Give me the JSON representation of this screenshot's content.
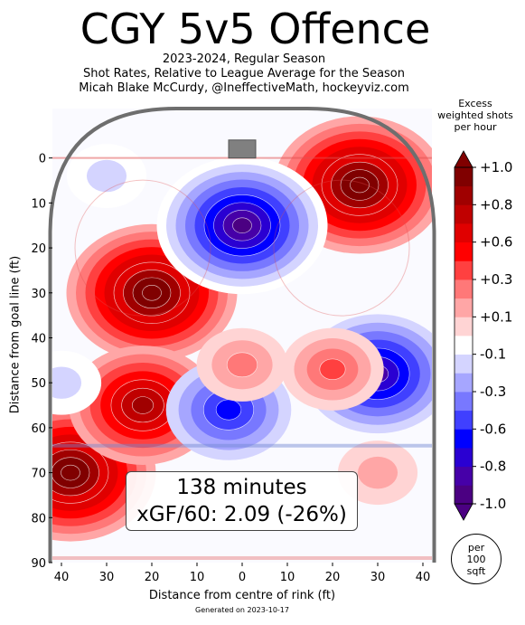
{
  "header": {
    "title": "CGY 5v5 Offence",
    "line1": "2023-2024, Regular Season",
    "line2": "Shot Rates, Relative to League Average for the Season",
    "line3": "Micah Blake McCurdy, @IneffectiveMath, hockeyviz.com"
  },
  "footer": "Generated on 2023-10-17",
  "colorbar": {
    "title_lines": [
      "Excess",
      "weighted shots",
      "per hour"
    ],
    "ticks": [
      "+1.0",
      "+0.8",
      "+0.6",
      "+0.3",
      "+0.1",
      "-0.1",
      "-0.3",
      "-0.6",
      "-0.8",
      "-1.0"
    ],
    "unit_lines": [
      "per",
      "100",
      "sqft"
    ],
    "colors": [
      "#4b0082",
      "#4600a8",
      "#2a00d2",
      "#0000ff",
      "#4040ff",
      "#7878ff",
      "#a6a6ff",
      "#d4d4ff",
      "#ffffff",
      "#ffd4d4",
      "#ffa6a6",
      "#ff7878",
      "#ff4040",
      "#ff0000",
      "#e00000",
      "#c00000",
      "#a00000",
      "#800000"
    ]
  },
  "annotation": {
    "line1": "138 minutes",
    "line2": "xGF/60: 2.09 (-26%)"
  },
  "chart_data": {
    "type": "heatmap",
    "title": "CGY 5v5 Offence",
    "xlabel": "Distance from centre of rink (ft)",
    "ylabel": "Distance from goal line (ft)",
    "xlim": [
      -42,
      42
    ],
    "ylim": [
      90,
      -11
    ],
    "x_ticks": [
      -40,
      -30,
      -20,
      -10,
      0,
      10,
      20,
      30,
      40
    ],
    "x_tick_labels": [
      "40",
      "30",
      "20",
      "10",
      "0",
      "10",
      "20",
      "30",
      "40"
    ],
    "y_ticks": [
      0,
      10,
      20,
      30,
      40,
      50,
      60,
      70,
      80,
      90
    ],
    "y_tick_labels": [
      "0",
      "10",
      "20",
      "30",
      "40",
      "50",
      "60",
      "70",
      "80",
      "90"
    ],
    "value_range": [
      -1.0,
      1.0
    ],
    "regions": [
      {
        "x": -20,
        "y": 30,
        "value": 1.0
      },
      {
        "x": 26,
        "y": 6,
        "value": 1.0
      },
      {
        "x": 0,
        "y": 15,
        "value": -1.0
      },
      {
        "x": -38,
        "y": 70,
        "value": 1.0
      },
      {
        "x": -22,
        "y": 55,
        "value": 0.8
      },
      {
        "x": 30,
        "y": 48,
        "value": -0.8
      },
      {
        "x": 20,
        "y": 47,
        "value": 0.4
      },
      {
        "x": -3,
        "y": 56,
        "value": -0.6
      },
      {
        "x": 30,
        "y": 70,
        "value": 0.2
      },
      {
        "x": 0,
        "y": 46,
        "value": 0.3
      },
      {
        "x": -40,
        "y": 50,
        "value": -0.2
      },
      {
        "x": -30,
        "y": 4,
        "value": -0.2
      }
    ]
  }
}
